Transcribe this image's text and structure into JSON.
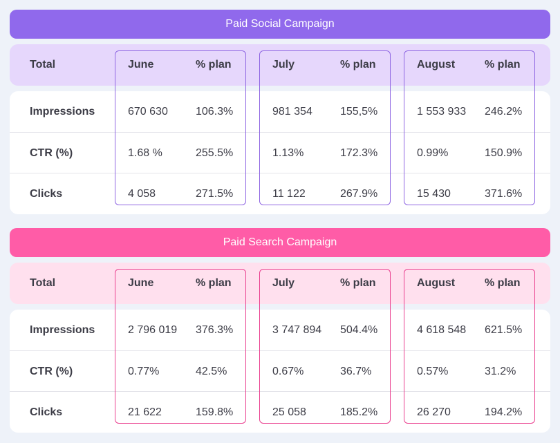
{
  "tables": [
    {
      "title": "Paid Social Campaign",
      "colors": {
        "banner": "#9069ec",
        "header_bg": "#e6d7fc",
        "frame": "#8e65e2"
      },
      "header": {
        "total_label": "Total",
        "months": [
          {
            "month": "June",
            "plan": "% plan"
          },
          {
            "month": "July",
            "plan": "% plan"
          },
          {
            "month": "August",
            "plan": "% plan"
          }
        ]
      },
      "rows": [
        {
          "label": "Impressions",
          "cells": [
            {
              "value": "670 630",
              "plan": "106.3%"
            },
            {
              "value": "981 354",
              "plan": "155,5%"
            },
            {
              "value": "1 553 933",
              "plan": "246.2%"
            }
          ]
        },
        {
          "label": "CTR (%)",
          "cells": [
            {
              "value": "1.68 %",
              "plan": "255.5%"
            },
            {
              "value": "1.13%",
              "plan": "172.3%"
            },
            {
              "value": "0.99%",
              "plan": "150.9%"
            }
          ]
        },
        {
          "label": "Clicks",
          "cells": [
            {
              "value": "4 058",
              "plan": "271.5%"
            },
            {
              "value": "11 122",
              "plan": "267.9%"
            },
            {
              "value": "15 430",
              "plan": "371.6%"
            }
          ]
        }
      ]
    },
    {
      "title": "Paid Search Campaign",
      "colors": {
        "banner": "#ff5ca7",
        "header_bg": "#ffe0ee",
        "frame": "#ea3f8f"
      },
      "header": {
        "total_label": "Total",
        "months": [
          {
            "month": "June",
            "plan": "% plan"
          },
          {
            "month": "July",
            "plan": "% plan"
          },
          {
            "month": "August",
            "plan": "% plan"
          }
        ]
      },
      "rows": [
        {
          "label": "Impressions",
          "cells": [
            {
              "value": "2 796 019",
              "plan": "376.3%"
            },
            {
              "value": "3 747 894",
              "plan": "504.4%"
            },
            {
              "value": "4 618 548",
              "plan": "621.5%"
            }
          ]
        },
        {
          "label": "CTR (%)",
          "cells": [
            {
              "value": "0.77%",
              "plan": "42.5%"
            },
            {
              "value": "0.67%",
              "plan": "36.7%"
            },
            {
              "value": "0.57%",
              "plan": "31.2%"
            }
          ]
        },
        {
          "label": "Clicks",
          "cells": [
            {
              "value": "21 622",
              "plan": "159.8%"
            },
            {
              "value": "25 058",
              "plan": "185.2%"
            },
            {
              "value": "26 270",
              "plan": "194.2%"
            }
          ]
        }
      ]
    }
  ]
}
